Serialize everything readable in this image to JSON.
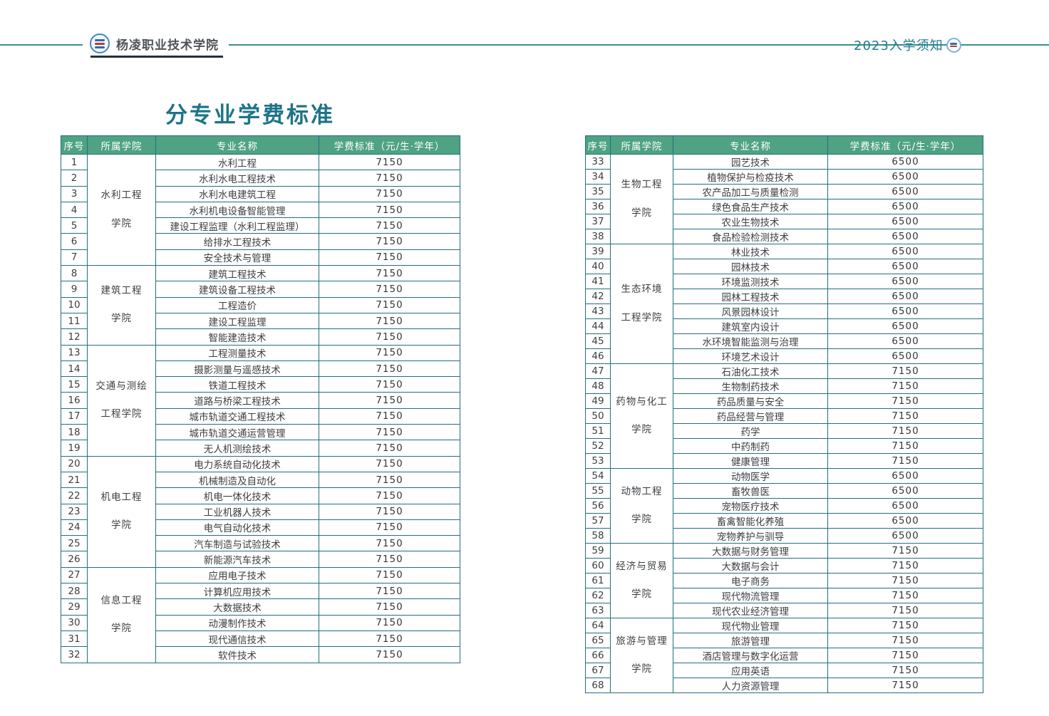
{
  "header": {
    "school_name": "杨凌职业技术学院",
    "notice_text": "2023入学须知"
  },
  "page_title": "分专业学费标准",
  "table_headers": {
    "no": "序号",
    "college": "所属学院",
    "major": "专业名称",
    "fee": "学费标准（元/生·学年）"
  },
  "colors": {
    "accent_teal": "#237c8e",
    "table_border": "#246e7e",
    "table_header_bg": "#4fa283",
    "title_teal": "#1d7487"
  },
  "tables": [
    {
      "id": "left",
      "groups": [
        {
          "college": "水利工程\n学院",
          "rows": [
            {
              "no": "1",
              "major": "水利工程",
              "fee": "7150"
            },
            {
              "no": "2",
              "major": "水利水电工程技术",
              "fee": "7150"
            },
            {
              "no": "3",
              "major": "水利水电建筑工程",
              "fee": "7150"
            },
            {
              "no": "4",
              "major": "水利机电设备智能管理",
              "fee": "7150"
            },
            {
              "no": "5",
              "major": "建设工程监理（水利工程监理）",
              "fee": "7150"
            },
            {
              "no": "6",
              "major": "给排水工程技术",
              "fee": "7150"
            },
            {
              "no": "7",
              "major": "安全技术与管理",
              "fee": "7150"
            }
          ]
        },
        {
          "college": "建筑工程\n学院",
          "rows": [
            {
              "no": "8",
              "major": "建筑工程技术",
              "fee": "7150"
            },
            {
              "no": "9",
              "major": "建筑设备工程技术",
              "fee": "7150"
            },
            {
              "no": "10",
              "major": "工程造价",
              "fee": "7150"
            },
            {
              "no": "11",
              "major": "建设工程监理",
              "fee": "7150"
            },
            {
              "no": "12",
              "major": "智能建造技术",
              "fee": "7150"
            }
          ]
        },
        {
          "college": "交通与测绘\n工程学院",
          "rows": [
            {
              "no": "13",
              "major": "工程测量技术",
              "fee": "7150"
            },
            {
              "no": "14",
              "major": "摄影测量与遥感技术",
              "fee": "7150"
            },
            {
              "no": "15",
              "major": "铁道工程技术",
              "fee": "7150"
            },
            {
              "no": "16",
              "major": "道路与桥梁工程技术",
              "fee": "7150"
            },
            {
              "no": "17",
              "major": "城市轨道交通工程技术",
              "fee": "7150"
            },
            {
              "no": "18",
              "major": "城市轨道交通运营管理",
              "fee": "7150"
            },
            {
              "no": "19",
              "major": "无人机测绘技术",
              "fee": "7150"
            }
          ]
        },
        {
          "college": "机电工程\n学院",
          "rows": [
            {
              "no": "20",
              "major": "电力系统自动化技术",
              "fee": "7150"
            },
            {
              "no": "21",
              "major": "机械制造及自动化",
              "fee": "7150"
            },
            {
              "no": "22",
              "major": "机电一体化技术",
              "fee": "7150"
            },
            {
              "no": "23",
              "major": "工业机器人技术",
              "fee": "7150"
            },
            {
              "no": "24",
              "major": "电气自动化技术",
              "fee": "7150"
            },
            {
              "no": "25",
              "major": "汽车制造与试验技术",
              "fee": "7150"
            },
            {
              "no": "26",
              "major": "新能源汽车技术",
              "fee": "7150"
            }
          ]
        },
        {
          "college": "信息工程\n学院",
          "rows": [
            {
              "no": "27",
              "major": "应用电子技术",
              "fee": "7150"
            },
            {
              "no": "28",
              "major": "计算机应用技术",
              "fee": "7150"
            },
            {
              "no": "29",
              "major": "大数据技术",
              "fee": "7150"
            },
            {
              "no": "30",
              "major": "动漫制作技术",
              "fee": "7150"
            },
            {
              "no": "31",
              "major": "现代通信技术",
              "fee": "7150"
            },
            {
              "no": "32",
              "major": "软件技术",
              "fee": "7150"
            }
          ]
        }
      ]
    },
    {
      "id": "right",
      "groups": [
        {
          "college": "生物工程\n学院",
          "rows": [
            {
              "no": "33",
              "major": "园艺技术",
              "fee": "6500"
            },
            {
              "no": "34",
              "major": "植物保护与检疫技术",
              "fee": "6500"
            },
            {
              "no": "35",
              "major": "农产品加工与质量检测",
              "fee": "6500"
            },
            {
              "no": "36",
              "major": "绿色食品生产技术",
              "fee": "6500"
            },
            {
              "no": "37",
              "major": "农业生物技术",
              "fee": "6500"
            },
            {
              "no": "38",
              "major": "食品检验检测技术",
              "fee": "6500"
            }
          ]
        },
        {
          "college": "生态环境\n工程学院",
          "rows": [
            {
              "no": "39",
              "major": "林业技术",
              "fee": "6500"
            },
            {
              "no": "40",
              "major": "园林技术",
              "fee": "6500"
            },
            {
              "no": "41",
              "major": "环境监测技术",
              "fee": "6500"
            },
            {
              "no": "42",
              "major": "园林工程技术",
              "fee": "6500"
            },
            {
              "no": "43",
              "major": "风景园林设计",
              "fee": "6500"
            },
            {
              "no": "44",
              "major": "建筑室内设计",
              "fee": "6500"
            },
            {
              "no": "45",
              "major": "水环境智能监测与治理",
              "fee": "6500"
            },
            {
              "no": "46",
              "major": "环境艺术设计",
              "fee": "6500"
            }
          ]
        },
        {
          "college": "药物与化工\n学院",
          "rows": [
            {
              "no": "47",
              "major": "石油化工技术",
              "fee": "7150"
            },
            {
              "no": "48",
              "major": "生物制药技术",
              "fee": "7150"
            },
            {
              "no": "49",
              "major": "药品质量与安全",
              "fee": "7150"
            },
            {
              "no": "50",
              "major": "药品经营与管理",
              "fee": "7150"
            },
            {
              "no": "51",
              "major": "药学",
              "fee": "7150"
            },
            {
              "no": "52",
              "major": "中药制药",
              "fee": "7150"
            },
            {
              "no": "53",
              "major": "健康管理",
              "fee": "7150"
            }
          ]
        },
        {
          "college": "动物工程\n学院",
          "rows": [
            {
              "no": "54",
              "major": "动物医学",
              "fee": "6500"
            },
            {
              "no": "55",
              "major": "畜牧兽医",
              "fee": "6500"
            },
            {
              "no": "56",
              "major": "宠物医疗技术",
              "fee": "6500"
            },
            {
              "no": "57",
              "major": "畜禽智能化养殖",
              "fee": "6500"
            },
            {
              "no": "58",
              "major": "宠物养护与驯导",
              "fee": "6500"
            }
          ]
        },
        {
          "college": "经济与贸易\n学院",
          "rows": [
            {
              "no": "59",
              "major": "大数据与财务管理",
              "fee": "7150"
            },
            {
              "no": "60",
              "major": "大数据与会计",
              "fee": "7150"
            },
            {
              "no": "61",
              "major": "电子商务",
              "fee": "7150"
            },
            {
              "no": "62",
              "major": "现代物流管理",
              "fee": "7150"
            },
            {
              "no": "63",
              "major": "现代农业经济管理",
              "fee": "7150"
            }
          ]
        },
        {
          "college": "旅游与管理\n学院",
          "rows": [
            {
              "no": "64",
              "major": "现代物业管理",
              "fee": "7150"
            },
            {
              "no": "65",
              "major": "旅游管理",
              "fee": "7150"
            },
            {
              "no": "66",
              "major": "酒店管理与数字化运营",
              "fee": "7150"
            },
            {
              "no": "67",
              "major": "应用英语",
              "fee": "7150"
            },
            {
              "no": "68",
              "major": "人力资源管理",
              "fee": "7150"
            }
          ]
        }
      ]
    }
  ]
}
